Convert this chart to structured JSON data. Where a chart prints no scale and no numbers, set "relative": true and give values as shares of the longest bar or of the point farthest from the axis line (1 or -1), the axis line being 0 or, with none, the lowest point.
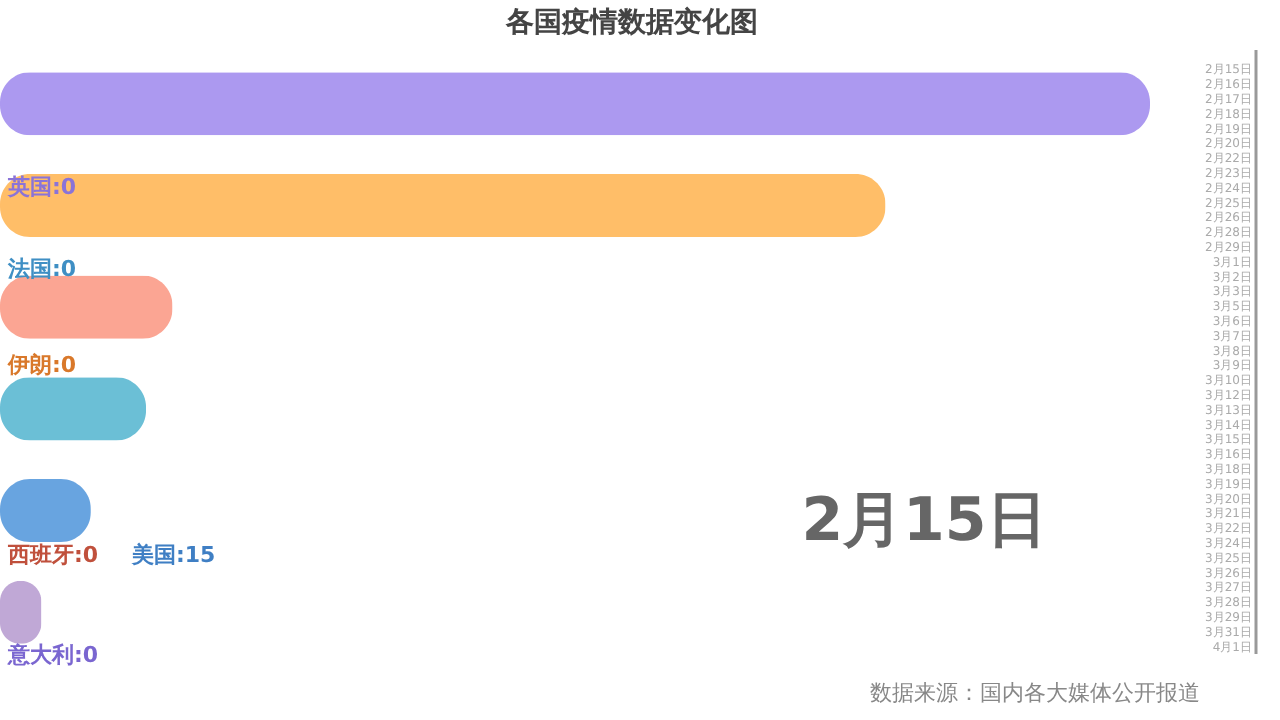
{
  "chart_data": [
    {
      "type": "bar",
      "orientation": "horizontal",
      "relative": true,
      "title": "各国疫情数据变化图",
      "categories": [
        null,
        null,
        null,
        null,
        null,
        null
      ],
      "values": [
        1,
        0.77,
        0.15,
        0.127,
        0.079,
        0.036
      ],
      "colors": [
        "#ac99f0",
        "#ffbe68",
        "#fba593",
        "#6bbfd6",
        "#68a4e0",
        "#c0a8d6"
      ],
      "annotations": [
        "英国:0",
        "法国:0",
        "伊朗:0",
        "西班牙:0",
        "美国:15",
        "意大利:0",
        "2月15日",
        "数据来源：国内各大媒体公开报道"
      ]
    },
    {
      "type": "other",
      "annotations": [
        "2月15日",
        "2月16日",
        "2月17日",
        "2月18日",
        "2月19日",
        "2月20日",
        "2月22日",
        "2月23日",
        "2月24日",
        "2月25日",
        "2月26日",
        "2月28日",
        "2月29日",
        "3月1日",
        "3月2日",
        "3月3日",
        "3月5日",
        "3月6日",
        "3月7日",
        "3月8日",
        "3月9日",
        "3月10日",
        "3月12日",
        "3月13日",
        "3月14日",
        "3月15日",
        "3月16日",
        "3月18日",
        "3月19日",
        "3月20日",
        "3月21日",
        "3月22日",
        "3月24日",
        "3月25日",
        "3月26日",
        "3月27日",
        "3月28日",
        "3月29日",
        "3月31日",
        "4月1日"
      ]
    }
  ]
}
